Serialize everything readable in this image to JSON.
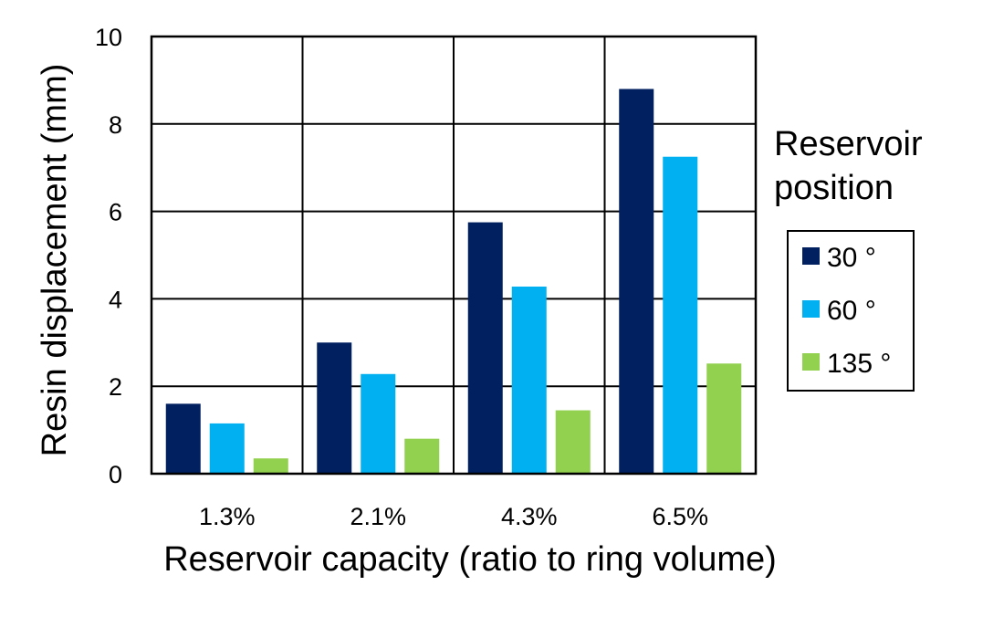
{
  "chart_data": {
    "type": "bar",
    "categories": [
      "1.3%",
      "2.1%",
      "4.3%",
      "6.5%"
    ],
    "series": [
      {
        "name": "30 °",
        "color": "#002060",
        "values": [
          1.6,
          3.0,
          5.75,
          8.8
        ]
      },
      {
        "name": "60 °",
        "color": "#00b0f0",
        "values": [
          1.15,
          2.28,
          4.28,
          7.25
        ]
      },
      {
        "name": "135 °",
        "color": "#92d050",
        "values": [
          0.35,
          0.8,
          1.45,
          2.52
        ]
      }
    ],
    "title": "",
    "xlabel": "Reservoir capacity (ratio to ring volume)",
    "ylabel": "Resin displacement (mm)",
    "ylim": [
      0,
      10
    ],
    "yticks": [
      "0",
      "2",
      "4",
      "6",
      "8",
      "10"
    ],
    "grid": true,
    "legend": {
      "title_line1": "Reservoir",
      "title_line2": "position",
      "placement": "right"
    }
  }
}
